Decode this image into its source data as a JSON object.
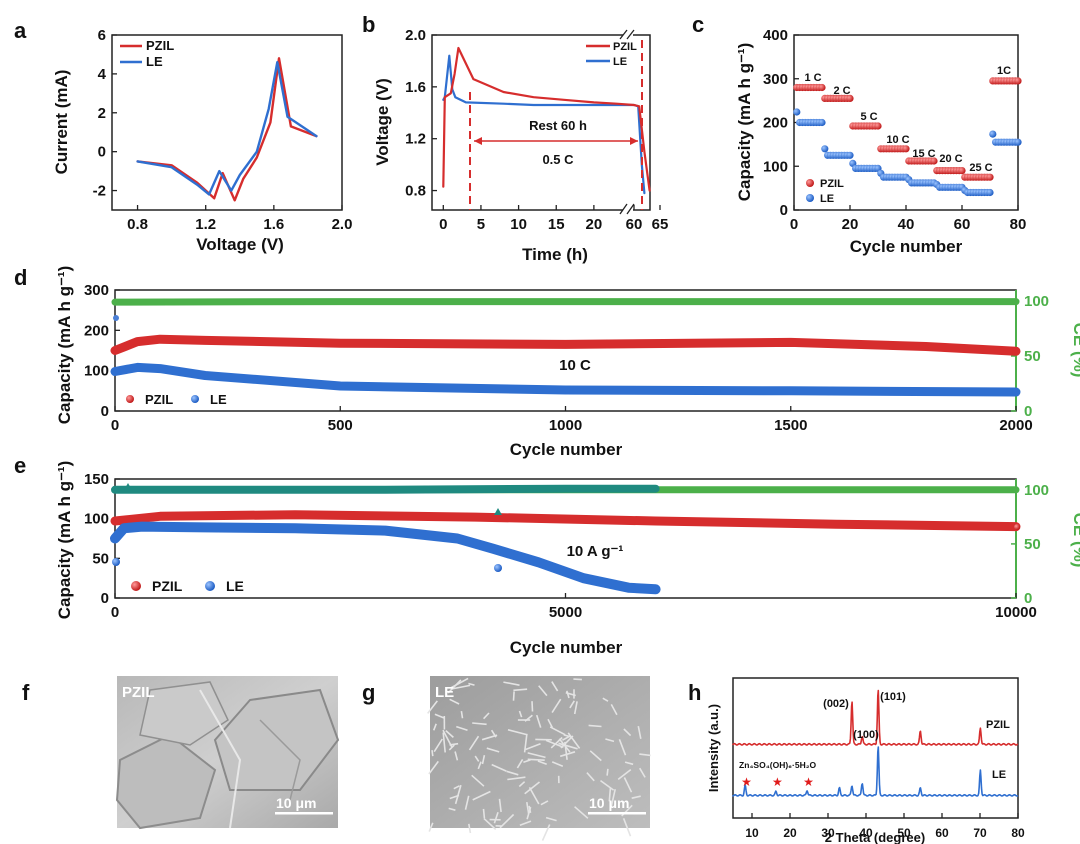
{
  "panels": {
    "a": {
      "letter": "a",
      "chart_data": {
        "type": "line",
        "xlabel": "Voltage (V)",
        "ylabel": "Current (mA)",
        "xlim": [
          0.8,
          2.0
        ],
        "ylim": [
          -3,
          6
        ],
        "xticks": [
          "0.8",
          "1.2",
          "1.6",
          "2.0"
        ],
        "yticks": [
          "-2",
          "0",
          "2",
          "4",
          "6"
        ],
        "legend": [
          "PZIL",
          "LE"
        ],
        "series": [
          {
            "name": "PZIL",
            "color": "#d62d2d",
            "x": [
              0.8,
              1.0,
              1.15,
              1.25,
              1.3,
              1.37,
              1.42,
              1.5,
              1.58,
              1.63,
              1.7,
              1.85
            ],
            "y": [
              -0.5,
              -0.7,
              -1.6,
              -2.4,
              -1.1,
              -2.5,
              -1.4,
              -0.3,
              1.5,
              4.8,
              1.3,
              0.8
            ]
          },
          {
            "name": "LE",
            "color": "#2f6fd0",
            "x": [
              0.8,
              1.0,
              1.15,
              1.22,
              1.28,
              1.35,
              1.4,
              1.5,
              1.57,
              1.62,
              1.68,
              1.85
            ],
            "y": [
              -0.5,
              -0.8,
              -1.7,
              -2.2,
              -1.0,
              -2.0,
              -1.2,
              0.0,
              2.2,
              4.6,
              1.8,
              0.8
            ]
          }
        ]
      }
    },
    "b": {
      "letter": "b",
      "rest_label": "Rest 60 h",
      "rate_label": "0.5 C",
      "chart_data": {
        "type": "line",
        "xlabel": "Time (h)",
        "ylabel": "Voltage (V)",
        "xticks": [
          "0",
          "5",
          "10",
          "15",
          "20",
          "60",
          "65"
        ],
        "yticks": [
          "0.8",
          "1.2",
          "1.6",
          "2.0"
        ],
        "ylim": [
          0.65,
          2.0
        ],
        "legend": [
          "PZIL",
          "LE"
        ],
        "series": [
          {
            "name": "PZIL",
            "color": "#d62d2d",
            "x": [
              0,
              0.2,
              1.0,
              1.5,
              2.0,
              4,
              8,
              12,
              16,
              20,
              23,
              60,
              61,
              62,
              63
            ],
            "y": [
              0.83,
              1.52,
              1.55,
              1.7,
              1.9,
              1.66,
              1.56,
              1.52,
              1.5,
              1.48,
              1.47,
              1.46,
              1.45,
              1.1,
              0.8
            ]
          },
          {
            "name": "LE",
            "color": "#2f6fd0",
            "x": [
              0,
              0.2,
              0.8,
              1.2,
              1.6,
              3,
              8,
              12,
              16,
              20,
              23,
              60,
              60.8,
              61.5,
              62
            ],
            "y": [
              1.5,
              1.52,
              1.84,
              1.58,
              1.52,
              1.48,
              1.47,
              1.46,
              1.46,
              1.46,
              1.46,
              1.46,
              1.45,
              1.0,
              0.78
            ]
          }
        ]
      }
    },
    "c": {
      "letter": "c",
      "chart_data": {
        "type": "scatter",
        "xlabel": "Cycle  number",
        "ylabel": "Capacity (mA h g⁻¹)",
        "xlim": [
          0,
          80
        ],
        "ylim": [
          0,
          400
        ],
        "xticks": [
          "0",
          "20",
          "40",
          "60",
          "80"
        ],
        "yticks": [
          "0",
          "100",
          "200",
          "300",
          "400"
        ],
        "legend": [
          "PZIL",
          "LE"
        ],
        "rate_labels": [
          "1 C",
          "2 C",
          "5 C",
          "10 C",
          "15 C",
          "20 C",
          "25 C",
          "1C"
        ],
        "series": [
          {
            "name": "PZIL",
            "color": "#d62d2d",
            "segments": [
              [
                1,
                10,
                280
              ],
              [
                11,
                20,
                255
              ],
              [
                21,
                30,
                192
              ],
              [
                31,
                40,
                140
              ],
              [
                41,
                50,
                112
              ],
              [
                51,
                60,
                90
              ],
              [
                61,
                70,
                75
              ],
              [
                71,
                80,
                295
              ]
            ]
          },
          {
            "name": "LE",
            "color": "#2f6fd0",
            "segments": [
              [
                1,
                10,
                200
              ],
              [
                11,
                20,
                125
              ],
              [
                21,
                30,
                95
              ],
              [
                31,
                40,
                75
              ],
              [
                41,
                50,
                62
              ],
              [
                51,
                60,
                52
              ],
              [
                61,
                70,
                40
              ],
              [
                71,
                80,
                155
              ]
            ]
          }
        ]
      }
    },
    "d": {
      "letter": "d",
      "rate_label": "10 C",
      "chart_data": {
        "type": "scatter",
        "xlabel": "Cycle  number",
        "ylabel": "Capacity (mA h g⁻¹)",
        "y2label": "CE (%)",
        "xlim": [
          0,
          2000
        ],
        "ylim": [
          0,
          300
        ],
        "y2lim": [
          0,
          110
        ],
        "xticks": [
          "0",
          "500",
          "1000",
          "1500",
          "2000"
        ],
        "yticks": [
          "0",
          "100",
          "200",
          "300"
        ],
        "y2ticks": [
          "0",
          "50",
          "100"
        ],
        "legend": [
          "PZIL",
          "LE"
        ],
        "series": [
          {
            "name": "PZIL",
            "color": "#d62d2d",
            "x": [
              0,
              50,
              100,
              200,
              500,
              1000,
              1500,
              1800,
              2000
            ],
            "y": [
              150,
              172,
              178,
              175,
              168,
              165,
              170,
              160,
              148
            ]
          },
          {
            "name": "LE",
            "color": "#2f6fd0",
            "x": [
              0,
              50,
              100,
              200,
              500,
              1000,
              1500,
              2000
            ],
            "y": [
              98,
              108,
              105,
              88,
              62,
              52,
              50,
              47
            ]
          },
          {
            "name": "CE",
            "color": "#4cb04a",
            "x": [
              0,
              500,
              1000,
              1500,
              2000
            ],
            "y": [
              99,
              99.5,
              99.5,
              99.5,
              99.5
            ]
          }
        ]
      }
    },
    "e": {
      "letter": "e",
      "rate_label": "10 A g⁻¹",
      "chart_data": {
        "type": "scatter",
        "xlabel": "Cycle  number",
        "ylabel": "Capacity (mA h g⁻¹)",
        "y2label": "CE (%)",
        "xlim": [
          0,
          10000
        ],
        "ylim": [
          0,
          150
        ],
        "y2lim": [
          0,
          110
        ],
        "xticks": [
          "0",
          "5000",
          "10000"
        ],
        "yticks": [
          "0",
          "50",
          "100",
          "150"
        ],
        "y2ticks": [
          "0",
          "50",
          "100"
        ],
        "legend": [
          "PZIL",
          "LE"
        ],
        "series": [
          {
            "name": "PZIL",
            "color": "#d62d2d",
            "x": [
              0,
              500,
              2000,
              4000,
              6000,
              8000,
              10000
            ],
            "y": [
              97,
              103,
              105,
              102,
              97,
              93,
              90
            ]
          },
          {
            "name": "LE",
            "color": "#2f6fd0",
            "x": [
              0,
              100,
              300,
              1000,
              2000,
              3000,
              3800,
              4200,
              4700,
              5200,
              5700,
              6000
            ],
            "y": [
              75,
              88,
              90,
              89,
              88,
              85,
              75,
              62,
              45,
              25,
              13,
              11
            ]
          },
          {
            "name": "LE CE",
            "color": "#1f8a80",
            "x": [
              0,
              1000,
              3000,
              5000,
              6000
            ],
            "y": [
              100,
              100,
              100,
              101,
              101
            ]
          },
          {
            "name": "PZIL CE",
            "color": "#4cb04a",
            "x": [
              0,
              5000,
              6000,
              8000,
              10000
            ],
            "y": [
              100,
              100,
              100,
              100,
              100
            ]
          }
        ]
      }
    },
    "f": {
      "letter": "f",
      "label": "PZIL",
      "scale": "10 μm"
    },
    "g": {
      "letter": "g",
      "label": "LE",
      "scale": "10 μm"
    },
    "h": {
      "letter": "h",
      "chart_data": {
        "type": "line",
        "xlabel": "2 Theta (degree)",
        "ylabel": "Intensity (a.u.)",
        "xlim": [
          5,
          80
        ],
        "xticks": [
          "10",
          "20",
          "30",
          "40",
          "50",
          "60",
          "70",
          "80"
        ],
        "peak_labels": [
          "(002)",
          "(100)",
          "(101)"
        ],
        "impurity_label": "Zn₄SO₄(OH)₆·5H₂O",
        "series": [
          {
            "name": "PZIL",
            "color": "#d62d2d",
            "peaks": [
              [
                36.3,
                0.8
              ],
              [
                39.0,
                0.15
              ],
              [
                43.2,
                1.0
              ],
              [
                54.3,
                0.25
              ],
              [
                70.1,
                0.3
              ]
            ]
          },
          {
            "name": "LE",
            "color": "#2f6fd0",
            "peaks": [
              [
                8.2,
                0.2
              ],
              [
                16.3,
                0.08
              ],
              [
                24.5,
                0.1
              ],
              [
                33.0,
                0.15
              ],
              [
                36.3,
                0.2
              ],
              [
                39.0,
                0.25
              ],
              [
                43.2,
                1.0
              ],
              [
                54.3,
                0.15
              ],
              [
                70.1,
                0.5
              ]
            ]
          }
        ]
      }
    }
  }
}
